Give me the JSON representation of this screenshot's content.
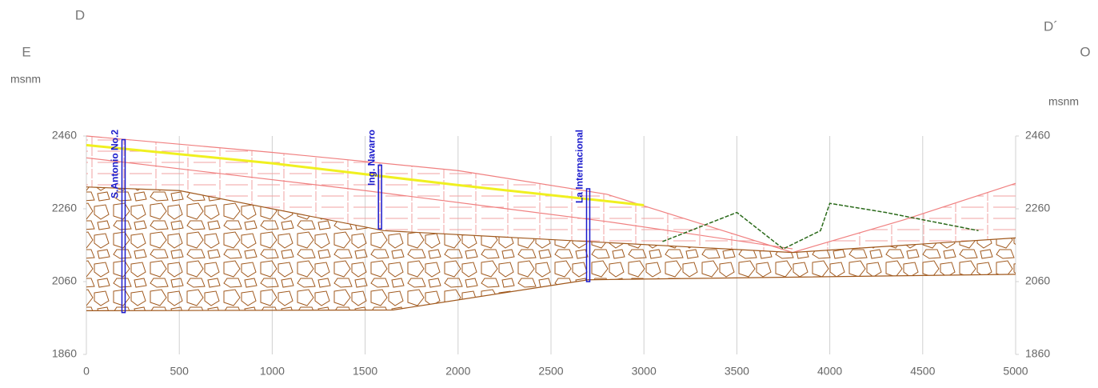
{
  "chart_data": {
    "type": "cross-section",
    "corner_labels": {
      "left_top": "D",
      "right_top": "D´",
      "left_dir": "E",
      "right_dir": "O"
    },
    "ylabel": "msnm",
    "y2label": "msnm",
    "xlim": [
      0,
      5000
    ],
    "xticks": [
      0,
      500,
      1000,
      1500,
      2000,
      2500,
      3000,
      3500,
      4000,
      4500,
      5000
    ],
    "ylim": [
      1860,
      2460
    ],
    "yticks": [
      1860,
      2060,
      2260,
      2460
    ],
    "y2lim": [
      1860,
      2460
    ],
    "y2ticks": [
      1860,
      2060,
      2260,
      2460
    ],
    "grid": true,
    "grid_color": "#d0d0d0",
    "wells": [
      {
        "name": "S.Antonio No.2",
        "x": 200,
        "top": 2450,
        "bottom": 1975,
        "color": "#1a1acc"
      },
      {
        "name": "Ing. Navarro",
        "x": 1580,
        "top": 2380,
        "bottom": 2205,
        "color": "#1a1acc"
      },
      {
        "name": "La Internacional",
        "x": 2700,
        "top": 2315,
        "bottom": 2060,
        "color": "#1a1acc"
      }
    ],
    "layers": [
      {
        "color": "#f08080",
        "x": [
          0,
          1000,
          2000,
          2800,
          3300,
          3800,
          4400,
          5000
        ],
        "y": [
          2460,
          2415,
          2365,
          2300,
          2220,
          2140,
          2230,
          2330
        ]
      },
      {
        "color": "#f08080",
        "x": [
          0,
          1500,
          2800,
          3800
        ],
        "y": [
          2400,
          2310,
          2225,
          2150
        ]
      },
      {
        "color": "#f0f020",
        "x": [
          0,
          1000,
          2000,
          3000
        ],
        "y": [
          2435,
          2385,
          2325,
          2270
        ]
      },
      {
        "color": "#a0581c",
        "x": [
          0,
          500,
          1600,
          2700,
          3800,
          4400,
          5000
        ],
        "y": [
          2320,
          2310,
          2200,
          2170,
          2140,
          2160,
          2180
        ]
      },
      {
        "color": "#a0581c",
        "x": [
          0,
          1650,
          2700,
          5000
        ],
        "y": [
          1980,
          1982,
          2065,
          2080
        ]
      },
      {
        "color": "#2a6a1a",
        "x": [
          3100,
          3500,
          3750,
          3950,
          4000,
          4300,
          4800
        ],
        "y": [
          2170,
          2250,
          2150,
          2200,
          2275,
          2250,
          2200
        ]
      }
    ]
  }
}
